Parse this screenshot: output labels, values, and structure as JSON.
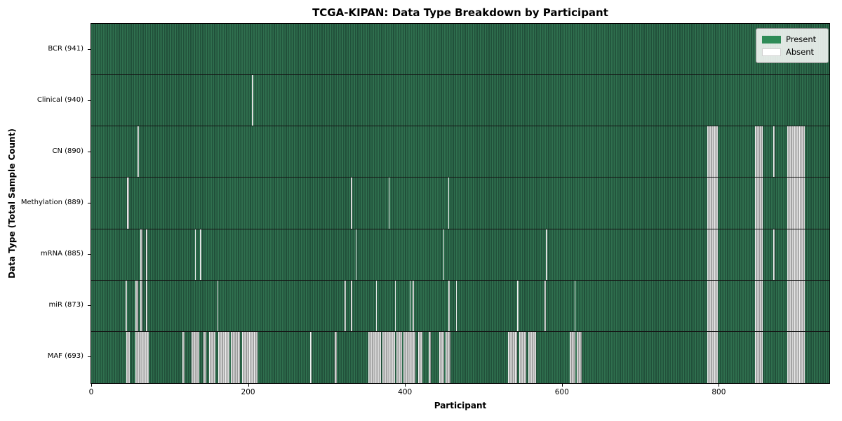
{
  "title": "TCGA-KIPAN: Data Type Breakdown by Participant",
  "chart_data": {
    "type": "heatmap",
    "title": "TCGA-KIPAN: Data Type Breakdown by Participant",
    "xlabel": "Participant",
    "ylabel": "Data Type (Total Sample Count)",
    "xlim": [
      0,
      941
    ],
    "xticks": [
      0,
      200,
      400,
      600,
      800
    ],
    "grid": false,
    "legend": {
      "position": "upper right",
      "entries": [
        {
          "label": "Present",
          "color": "#2e8b57"
        },
        {
          "label": "Absent",
          "color": "#ffffff"
        }
      ]
    },
    "colors": {
      "present": "#2e8b57",
      "absent": "#ffffff",
      "present_fill_light": "#2f6f4e",
      "present_fill_dark": "#21503a",
      "absent_fill_light": "#f0f0f0",
      "absent_fill_dark": "#9a9a9a",
      "row_divider": "#141414"
    },
    "rows": [
      {
        "label": "BCR (941)",
        "data_type": "BCR",
        "total_samples": 941,
        "absent_ranges": []
      },
      {
        "label": "Clinical (940)",
        "data_type": "Clinical",
        "total_samples": 940,
        "absent_ranges": [
          [
            205,
            206
          ]
        ]
      },
      {
        "label": "CN (890)",
        "data_type": "CN",
        "total_samples": 890,
        "absent_ranges": [
          [
            59,
            61
          ],
          [
            785,
            799
          ],
          [
            846,
            856
          ],
          [
            869,
            871
          ],
          [
            887,
            910
          ]
        ]
      },
      {
        "label": "Methylation (889)",
        "data_type": "Methylation",
        "total_samples": 889,
        "absent_ranges": [
          [
            46,
            48
          ],
          [
            331,
            332
          ],
          [
            379,
            380
          ],
          [
            455,
            456
          ],
          [
            785,
            799
          ],
          [
            846,
            856
          ],
          [
            887,
            910
          ]
        ]
      },
      {
        "label": "mRNA (885)",
        "data_type": "mRNA",
        "total_samples": 885,
        "absent_ranges": [
          [
            63,
            65
          ],
          [
            70,
            71
          ],
          [
            132,
            133
          ],
          [
            139,
            140
          ],
          [
            337,
            338
          ],
          [
            449,
            450
          ],
          [
            580,
            581
          ],
          [
            785,
            799
          ],
          [
            846,
            856
          ],
          [
            869,
            871
          ],
          [
            887,
            910
          ]
        ]
      },
      {
        "label": "miR (873)",
        "data_type": "miR",
        "total_samples": 873,
        "absent_ranges": [
          [
            44,
            45
          ],
          [
            56,
            60
          ],
          [
            63,
            65
          ],
          [
            70,
            71
          ],
          [
            161,
            162
          ],
          [
            323,
            324
          ],
          [
            331,
            332
          ],
          [
            363,
            364
          ],
          [
            387,
            388
          ],
          [
            406,
            407
          ],
          [
            410,
            411
          ],
          [
            455,
            457
          ],
          [
            465,
            466
          ],
          [
            543,
            544
          ],
          [
            578,
            579
          ],
          [
            616,
            617
          ],
          [
            785,
            799
          ],
          [
            846,
            856
          ],
          [
            887,
            910
          ]
        ]
      },
      {
        "label": "MAF (693)",
        "data_type": "MAF",
        "total_samples": 693,
        "absent_ranges": [
          [
            45,
            49
          ],
          [
            56,
            73
          ],
          [
            116,
            119
          ],
          [
            128,
            138
          ],
          [
            143,
            147
          ],
          [
            150,
            158
          ],
          [
            162,
            176
          ],
          [
            178,
            190
          ],
          [
            192,
            212
          ],
          [
            279,
            281
          ],
          [
            310,
            313
          ],
          [
            353,
            369
          ],
          [
            371,
            387
          ],
          [
            389,
            396
          ],
          [
            398,
            413
          ],
          [
            417,
            422
          ],
          [
            430,
            433
          ],
          [
            444,
            450
          ],
          [
            452,
            458
          ],
          [
            531,
            543
          ],
          [
            546,
            555
          ],
          [
            557,
            567
          ],
          [
            610,
            617
          ],
          [
            619,
            625
          ],
          [
            785,
            799
          ],
          [
            846,
            856
          ],
          [
            887,
            910
          ]
        ]
      }
    ]
  }
}
